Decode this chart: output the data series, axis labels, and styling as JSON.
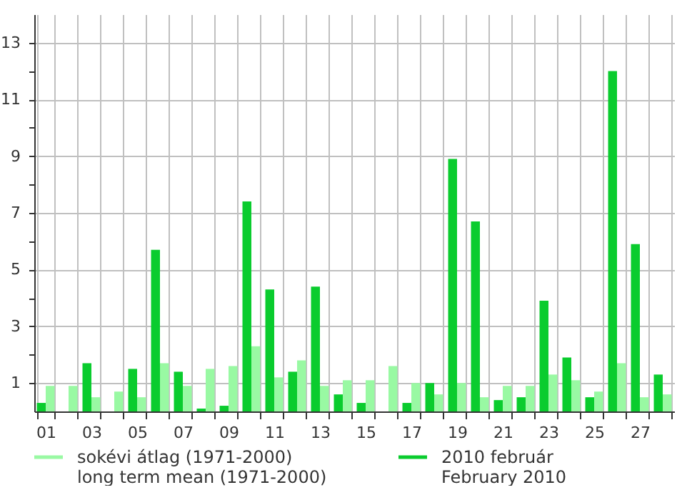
{
  "chart_data": {
    "type": "bar",
    "categories": [
      "01",
      null,
      "03",
      null,
      "05",
      null,
      "07",
      null,
      "09",
      null,
      "11",
      null,
      "13",
      null,
      "15",
      null,
      "17",
      null,
      "19",
      null,
      "21",
      null,
      "23",
      null,
      "25",
      null,
      "27",
      null
    ],
    "series": [
      {
        "name": "sokévi átlag (1971-2000)\nlong term mean (1971-2000)",
        "color": "#99f9a3",
        "values": [
          0.9,
          0.9,
          0.5,
          0.7,
          0.5,
          1.7,
          0.9,
          1.5,
          1.6,
          2.3,
          1.2,
          1.8,
          0.9,
          1.1,
          1.1,
          1.6,
          1.0,
          0.6,
          1.0,
          0.5,
          0.9,
          0.9,
          1.3,
          1.1,
          0.7,
          1.7,
          0.5,
          0.6
        ]
      },
      {
        "name": "2010 február\nFebruary 2010",
        "color": "#0acc2e",
        "values": [
          0.3,
          0,
          1.7,
          0,
          1.5,
          5.7,
          1.4,
          0.1,
          0.2,
          7.4,
          4.3,
          1.4,
          4.4,
          0.6,
          0.3,
          0,
          0.3,
          1.0,
          8.9,
          6.7,
          0.4,
          0.5,
          3.9,
          1.9,
          0.5,
          12.0,
          5.9,
          1.3
        ]
      }
    ],
    "ylim": [
      0,
      14
    ],
    "yticks": [
      1,
      {
        "value": 2,
        "label": null
      },
      3,
      {
        "value": 4,
        "label": null
      },
      5,
      {
        "value": 6,
        "label": null
      },
      7,
      {
        "value": 8,
        "label": null
      },
      9,
      {
        "value": 10,
        "label": null
      },
      11,
      {
        "value": 12,
        "label": null
      },
      13
    ],
    "grid": true,
    "legend": "bottom"
  }
}
